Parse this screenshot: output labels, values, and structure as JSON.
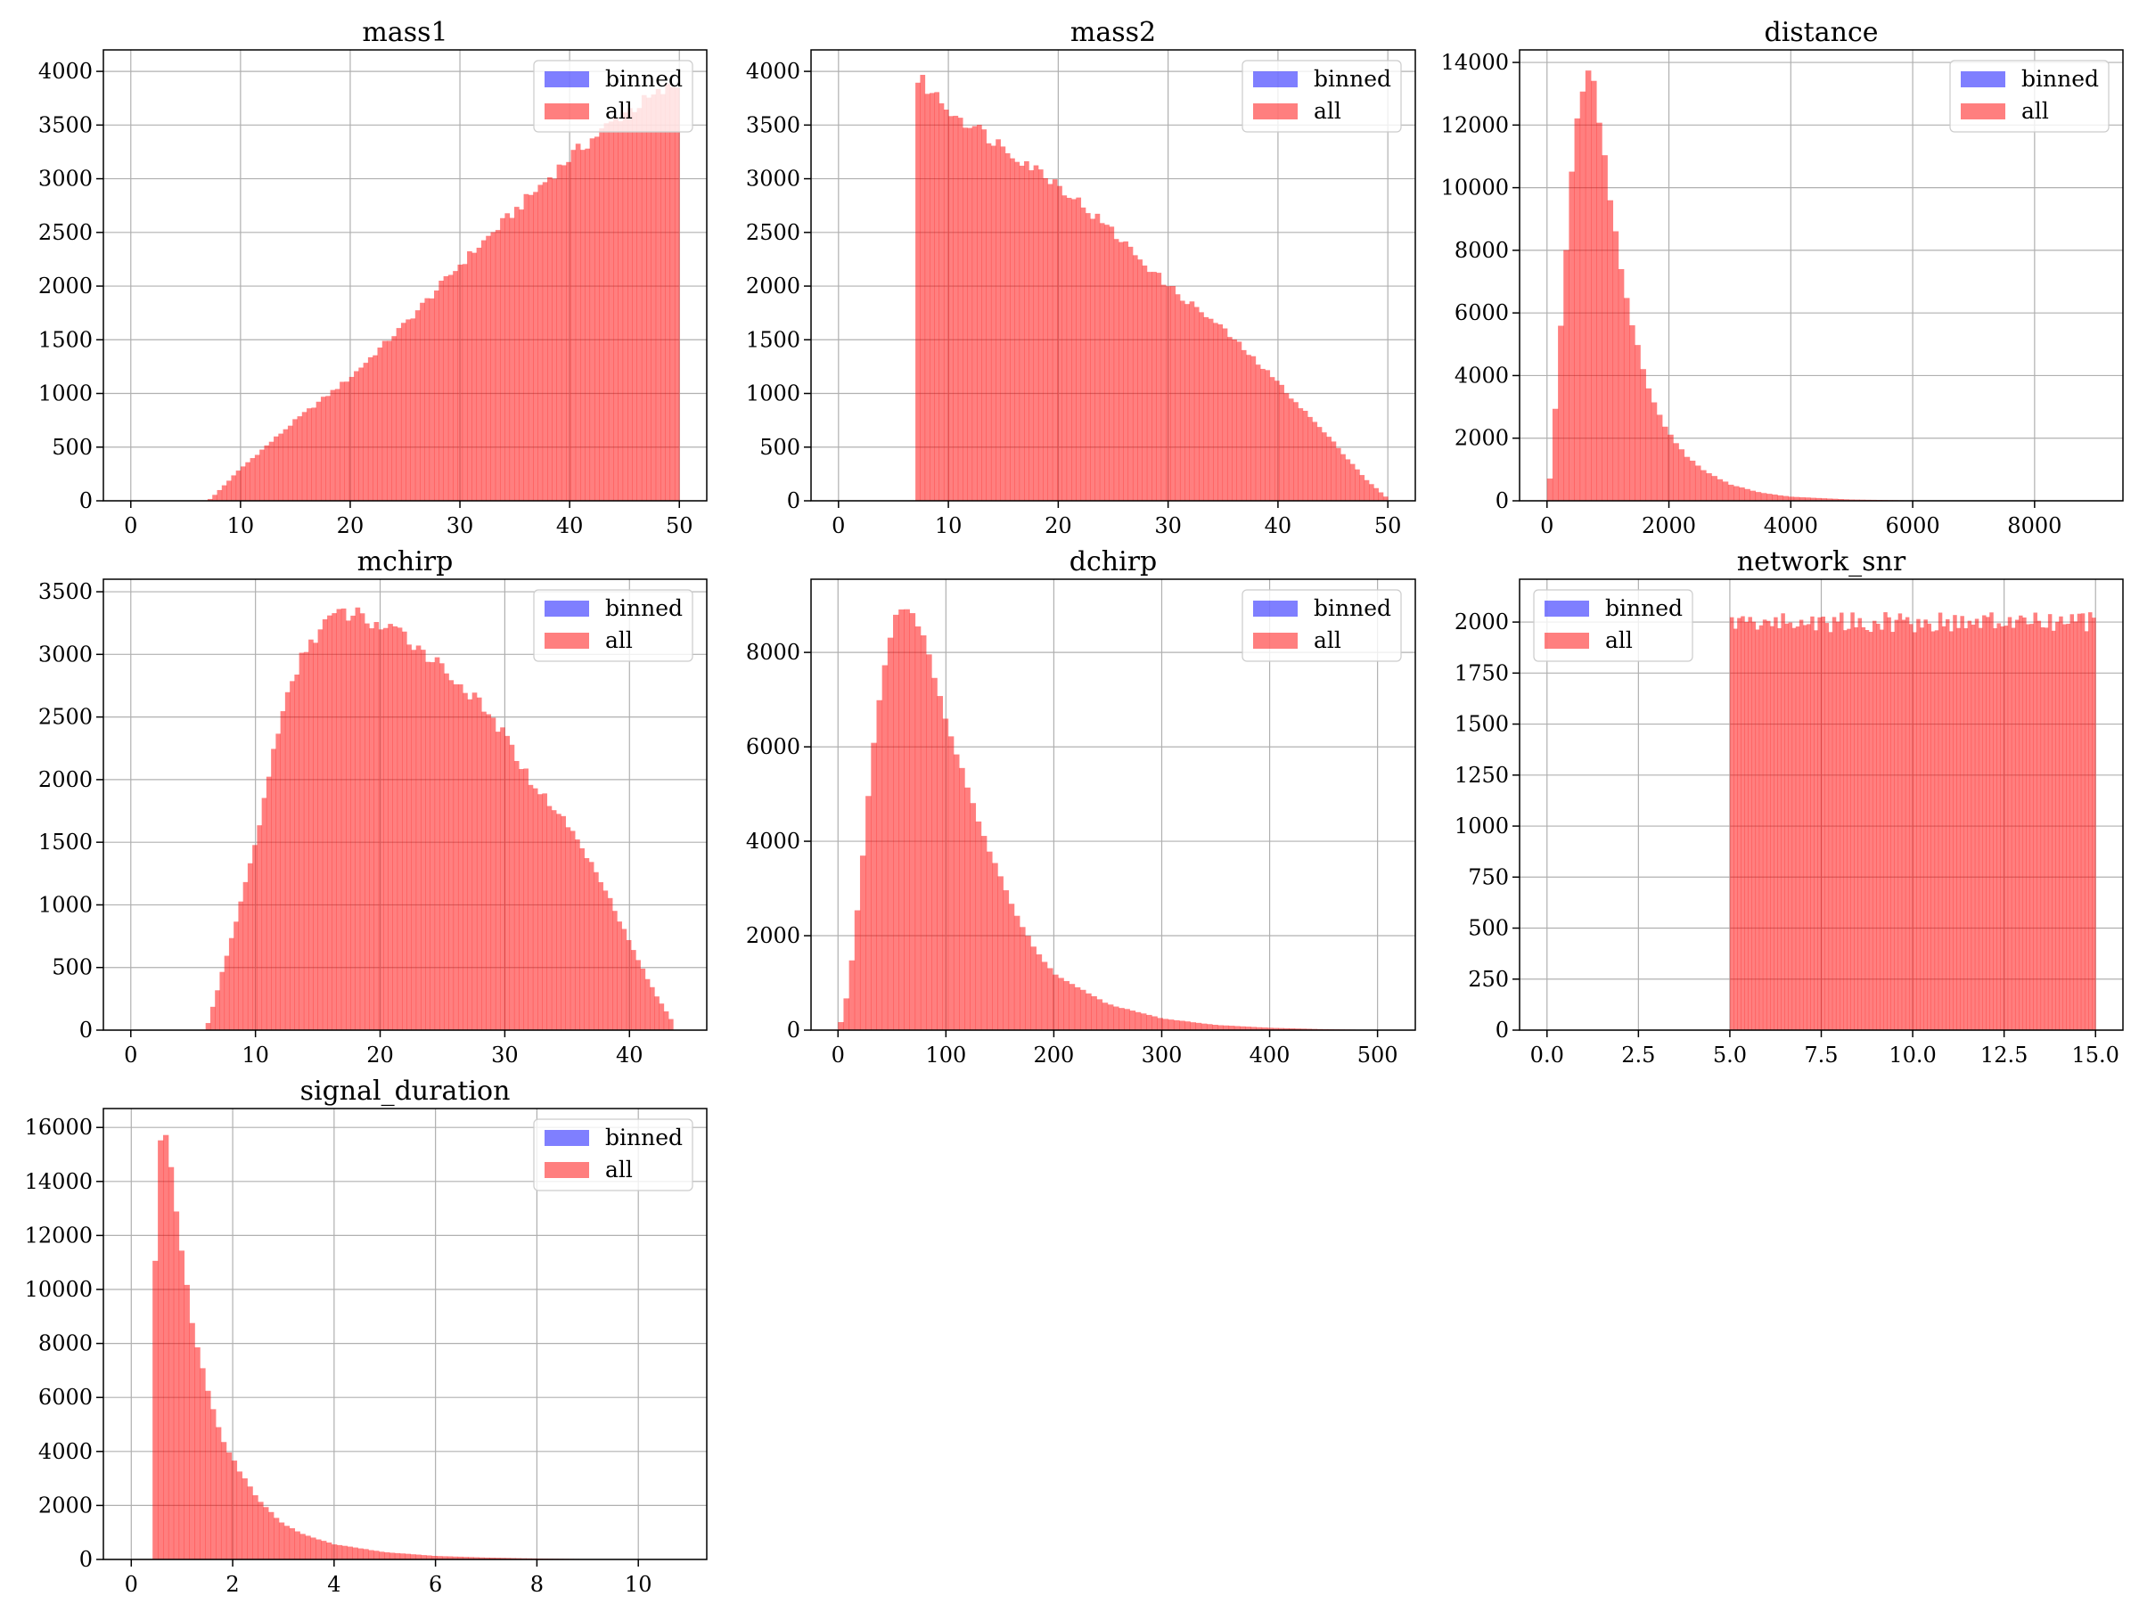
{
  "colors": {
    "all": "#ff0000",
    "binned": "#0000ff",
    "alpha": 0.5,
    "grid": "#b0b0b0",
    "axis": "#000000"
  },
  "chart_data": [
    {
      "type": "bar",
      "title": "mass1",
      "xlabel": "",
      "ylabel": "",
      "xlim": [
        -2.5,
        52.5
      ],
      "ylim": [
        0,
        4200
      ],
      "xticks": [
        0,
        10,
        20,
        30,
        40,
        50
      ],
      "yticks": [
        0,
        500,
        1000,
        1500,
        2000,
        2500,
        3000,
        3500,
        4000
      ],
      "grid": true,
      "legend": {
        "position": "upper right",
        "entries": [
          "binned",
          "all"
        ]
      },
      "series": [
        {
          "name": "all",
          "color": "red",
          "curve": [
            [
              7,
              0
            ],
            [
              7.5,
              40
            ],
            [
              10,
              300
            ],
            [
              15,
              750
            ],
            [
              20,
              1150
            ],
            [
              25,
              1650
            ],
            [
              30,
              2200
            ],
            [
              35,
              2700
            ],
            [
              40,
              3200
            ],
            [
              45,
              3620
            ],
            [
              48,
              3780
            ],
            [
              50,
              3900
            ]
          ],
          "range": [
            7,
            50
          ],
          "bins": 100,
          "noise": 0.02
        },
        {
          "name": "binned",
          "color": "blue",
          "values": []
        }
      ]
    },
    {
      "type": "bar",
      "title": "mass2",
      "xlabel": "",
      "ylabel": "",
      "xlim": [
        -2.5,
        52.5
      ],
      "ylim": [
        0,
        4200
      ],
      "xticks": [
        0,
        10,
        20,
        30,
        40,
        50
      ],
      "yticks": [
        0,
        500,
        1000,
        1500,
        2000,
        2500,
        3000,
        3500,
        4000
      ],
      "grid": true,
      "legend": {
        "position": "upper right",
        "entries": [
          "binned",
          "all"
        ]
      },
      "series": [
        {
          "name": "all",
          "color": "red",
          "curve": [
            [
              7,
              3950
            ],
            [
              8,
              3860
            ],
            [
              10,
              3650
            ],
            [
              15,
              3300
            ],
            [
              20,
              2950
            ],
            [
              25,
              2500
            ],
            [
              30,
              2000
            ],
            [
              35,
              1600
            ],
            [
              40,
              1100
            ],
            [
              45,
              550
            ],
            [
              48,
              200
            ],
            [
              50,
              20
            ]
          ],
          "range": [
            7,
            50
          ],
          "bins": 100,
          "noise": 0.02
        },
        {
          "name": "binned",
          "color": "blue",
          "values": []
        }
      ]
    },
    {
      "type": "bar",
      "title": "distance",
      "xlabel": "",
      "ylabel": "",
      "xlim": [
        -450,
        9450
      ],
      "ylim": [
        0,
        14400
      ],
      "xticks": [
        0,
        2000,
        4000,
        6000,
        8000
      ],
      "yticks": [
        0,
        2000,
        4000,
        6000,
        8000,
        10000,
        12000,
        14000
      ],
      "grid": true,
      "legend": {
        "position": "upper right",
        "entries": [
          "binned",
          "all"
        ]
      },
      "series": [
        {
          "name": "all",
          "color": "red",
          "curve": [
            [
              0,
              0
            ],
            [
              50,
              800
            ],
            [
              150,
              3300
            ],
            [
              250,
              6400
            ],
            [
              350,
              9000
            ],
            [
              450,
              11500
            ],
            [
              550,
              12900
            ],
            [
              650,
              13700
            ],
            [
              750,
              13400
            ],
            [
              850,
              12300
            ],
            [
              950,
              11000
            ],
            [
              1050,
              9500
            ],
            [
              1150,
              8200
            ],
            [
              1250,
              7000
            ],
            [
              1400,
              5600
            ],
            [
              1600,
              4000
            ],
            [
              1800,
              2900
            ],
            [
              2000,
              2150
            ],
            [
              2300,
              1400
            ],
            [
              2600,
              930
            ],
            [
              3000,
              530
            ],
            [
              3500,
              260
            ],
            [
              4000,
              130
            ],
            [
              5000,
              40
            ],
            [
              6000,
              12
            ],
            [
              7000,
              4
            ],
            [
              9000,
              0
            ]
          ],
          "range": [
            0,
            9000
          ],
          "bins": 100,
          "noise": 0.015
        },
        {
          "name": "binned",
          "color": "blue",
          "values": []
        }
      ]
    },
    {
      "type": "bar",
      "title": "mchirp",
      "xlabel": "",
      "ylabel": "",
      "xlim": [
        -2.2,
        46.2
      ],
      "ylim": [
        0,
        3600
      ],
      "xticks": [
        0,
        10,
        20,
        30,
        40
      ],
      "yticks": [
        0,
        500,
        1000,
        1500,
        2000,
        2500,
        3000,
        3500
      ],
      "grid": true,
      "legend": {
        "position": "upper right",
        "entries": [
          "binned",
          "all"
        ]
      },
      "series": [
        {
          "name": "all",
          "color": "red",
          "curve": [
            [
              6,
              0
            ],
            [
              6.2,
              60
            ],
            [
              8,
              700
            ],
            [
              10,
              1500
            ],
            [
              12,
              2500
            ],
            [
              14,
              3050
            ],
            [
              16,
              3300
            ],
            [
              18,
              3330
            ],
            [
              20,
              3220
            ],
            [
              22,
              3150
            ],
            [
              25,
              2900
            ],
            [
              28,
              2600
            ],
            [
              30,
              2350
            ],
            [
              32,
              2000
            ],
            [
              35,
              1650
            ],
            [
              38,
              1150
            ],
            [
              40,
              700
            ],
            [
              42,
              300
            ],
            [
              43.5,
              60
            ]
          ],
          "range": [
            6,
            43.5
          ],
          "bins": 100,
          "noise": 0.02
        },
        {
          "name": "binned",
          "color": "blue",
          "values": []
        }
      ]
    },
    {
      "type": "bar",
      "title": "dchirp",
      "xlabel": "",
      "ylabel": "",
      "xlim": [
        -25,
        535
      ],
      "ylim": [
        0,
        9550
      ],
      "xticks": [
        0,
        100,
        200,
        300,
        400,
        500
      ],
      "yticks": [
        0,
        2000,
        4000,
        6000,
        8000
      ],
      "grid": true,
      "legend": {
        "position": "upper right",
        "entries": [
          "binned",
          "all"
        ]
      },
      "series": [
        {
          "name": "all",
          "color": "red",
          "curve": [
            [
              0,
              0
            ],
            [
              3,
              200
            ],
            [
              10,
              900
            ],
            [
              20,
              3000
            ],
            [
              30,
              5500
            ],
            [
              40,
              7400
            ],
            [
              50,
              8500
            ],
            [
              60,
              9000
            ],
            [
              70,
              8800
            ],
            [
              80,
              8200
            ],
            [
              90,
              7400
            ],
            [
              100,
              6600
            ],
            [
              120,
              5100
            ],
            [
              140,
              3800
            ],
            [
              160,
              2700
            ],
            [
              180,
              1800
            ],
            [
              200,
              1200
            ],
            [
              250,
              550
            ],
            [
              300,
              250
            ],
            [
              350,
              110
            ],
            [
              400,
              50
            ],
            [
              450,
              20
            ],
            [
              510,
              0
            ]
          ],
          "range": [
            0,
            510
          ],
          "bins": 100,
          "noise": 0.015
        },
        {
          "name": "binned",
          "color": "blue",
          "values": []
        }
      ]
    },
    {
      "type": "bar",
      "title": "network_snr",
      "xlabel": "",
      "ylabel": "",
      "xlim": [
        -0.75,
        15.75
      ],
      "ylim": [
        0,
        2210
      ],
      "xticks": [
        0.0,
        2.5,
        5.0,
        7.5,
        10.0,
        12.5,
        15.0
      ],
      "xtick_labels": [
        "0.0",
        "2.5",
        "5.0",
        "7.5",
        "10.0",
        "12.5",
        "15.0"
      ],
      "yticks": [
        0,
        250,
        500,
        750,
        1000,
        1250,
        1500,
        1750,
        2000
      ],
      "grid": true,
      "legend": {
        "position": "upper left",
        "entries": [
          "binned",
          "all"
        ]
      },
      "series": [
        {
          "name": "all",
          "color": "red",
          "curve": [
            [
              5,
              2000
            ],
            [
              15,
              2000
            ]
          ],
          "range": [
            5,
            15
          ],
          "bins": 100,
          "noise": 0.025
        },
        {
          "name": "binned",
          "color": "blue",
          "values": []
        }
      ]
    },
    {
      "type": "bar",
      "title": "signal_duration",
      "xlabel": "",
      "ylabel": "",
      "xlim": [
        -0.55,
        11.35
      ],
      "ylim": [
        0,
        16700
      ],
      "xticks": [
        0,
        2,
        4,
        6,
        8,
        10
      ],
      "yticks": [
        0,
        2000,
        4000,
        6000,
        8000,
        10000,
        12000,
        14000,
        16000
      ],
      "grid": true,
      "legend": {
        "position": "upper right",
        "entries": [
          "binned",
          "all"
        ]
      },
      "series": [
        {
          "name": "all",
          "color": "red",
          "curve": [
            [
              0.42,
              8200
            ],
            [
              0.55,
              15200
            ],
            [
              0.65,
              15800
            ],
            [
              0.75,
              15000
            ],
            [
              0.85,
              13500
            ],
            [
              1.0,
              11300
            ],
            [
              1.2,
              8800
            ],
            [
              1.4,
              7100
            ],
            [
              1.6,
              5600
            ],
            [
              1.8,
              4500
            ],
            [
              2.0,
              3700
            ],
            [
              2.5,
              2200
            ],
            [
              3.0,
              1300
            ],
            [
              3.5,
              850
            ],
            [
              4.0,
              560
            ],
            [
              5.0,
              270
            ],
            [
              6.0,
              130
            ],
            [
              7.0,
              70
            ],
            [
              8.0,
              35
            ],
            [
              9.0,
              15
            ],
            [
              10.8,
              0
            ]
          ],
          "range": [
            0.42,
            10.8
          ],
          "bins": 100,
          "noise": 0.015
        },
        {
          "name": "binned",
          "color": "blue",
          "values": []
        }
      ]
    }
  ]
}
